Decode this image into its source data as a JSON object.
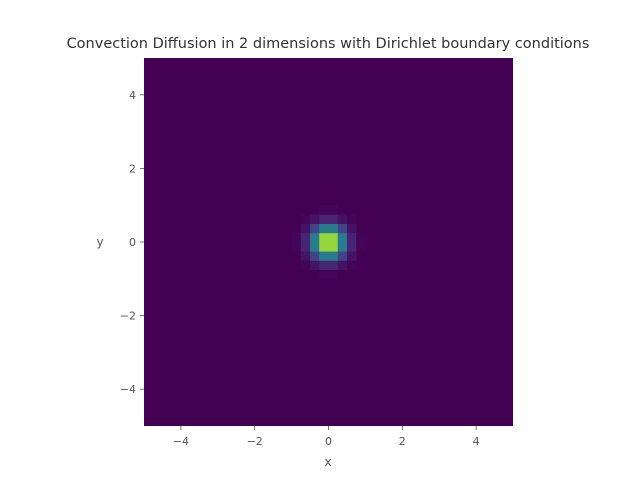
{
  "chart_data": {
    "type": "heatmap",
    "title": "Convection Diffusion in 2 dimensions with Dirichlet boundary conditions",
    "xlabel": "x",
    "ylabel": "y",
    "xlim": [
      -5,
      5
    ],
    "ylim": [
      -5,
      5
    ],
    "x_ticks": [
      -4,
      -2,
      0,
      2,
      4
    ],
    "y_ticks": [
      -4,
      -2,
      0,
      2,
      4
    ],
    "x_tick_labels": [
      "−4",
      "−2",
      "0",
      "2",
      "4"
    ],
    "y_tick_labels": [
      "−4",
      "−2",
      "0",
      "2",
      "4"
    ],
    "grid_shape": [
      40,
      40
    ],
    "colormap": "viridis",
    "peak": {
      "x": 0,
      "y": 0,
      "sigma": 0.3,
      "value": 1.0
    },
    "background_value": 0.0,
    "grid": false,
    "colorbar": false
  },
  "colors": {
    "low": "#440154",
    "high": "#fde725"
  }
}
